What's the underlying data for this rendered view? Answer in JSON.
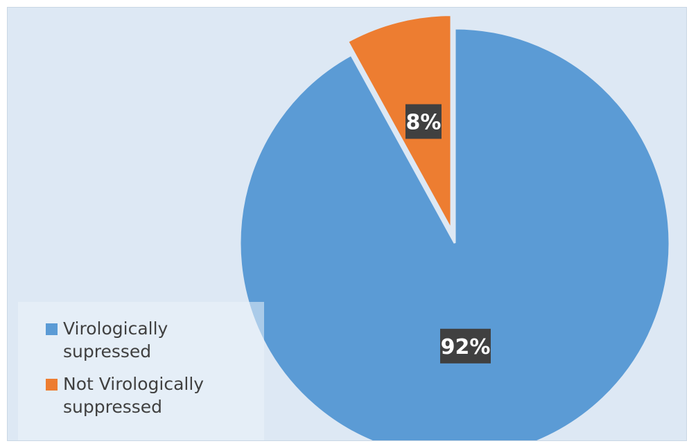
{
  "chart_data": {
    "type": "pie",
    "categories": [
      "Virologically supressed",
      "Not Virologically suppressed"
    ],
    "values": [
      92,
      8
    ],
    "labels": [
      "92%",
      "8%"
    ],
    "colors": [
      "#5b9bd5",
      "#ed7d31"
    ],
    "legend_position": "bottom-left",
    "exploded_slice": "Not Virologically suppressed"
  },
  "legend": {
    "items": [
      {
        "label": "Virologically supressed",
        "color": "#5b9bd5"
      },
      {
        "label": "Not Virologically suppressed",
        "color": "#ed7d31"
      }
    ]
  }
}
